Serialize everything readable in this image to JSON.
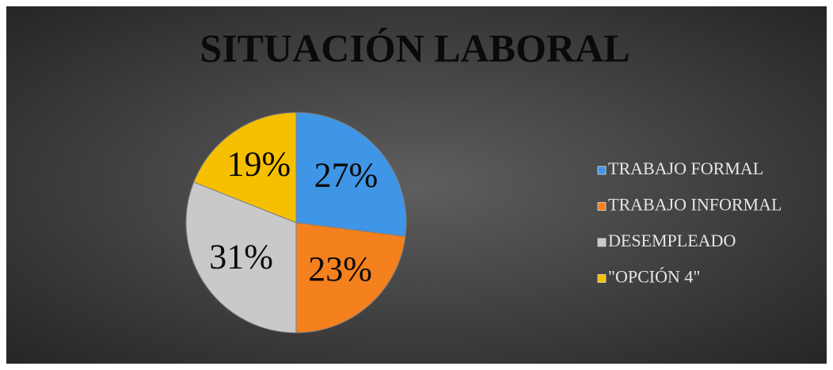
{
  "chart_data": {
    "type": "pie",
    "title": "SITUACIÓN LABORAL",
    "categories": [
      "TRABAJO FORMAL",
      "TRABAJO INFORMAL",
      "DESEMPLEADO",
      "\"OPCIÓN 4\""
    ],
    "values": [
      27,
      23,
      31,
      19
    ],
    "value_labels": [
      "27%",
      "23%",
      "31%",
      "19%"
    ],
    "colors": [
      "#3f95e6",
      "#f5801e",
      "#c9c9c9",
      "#f6c000"
    ],
    "legend": "right"
  }
}
